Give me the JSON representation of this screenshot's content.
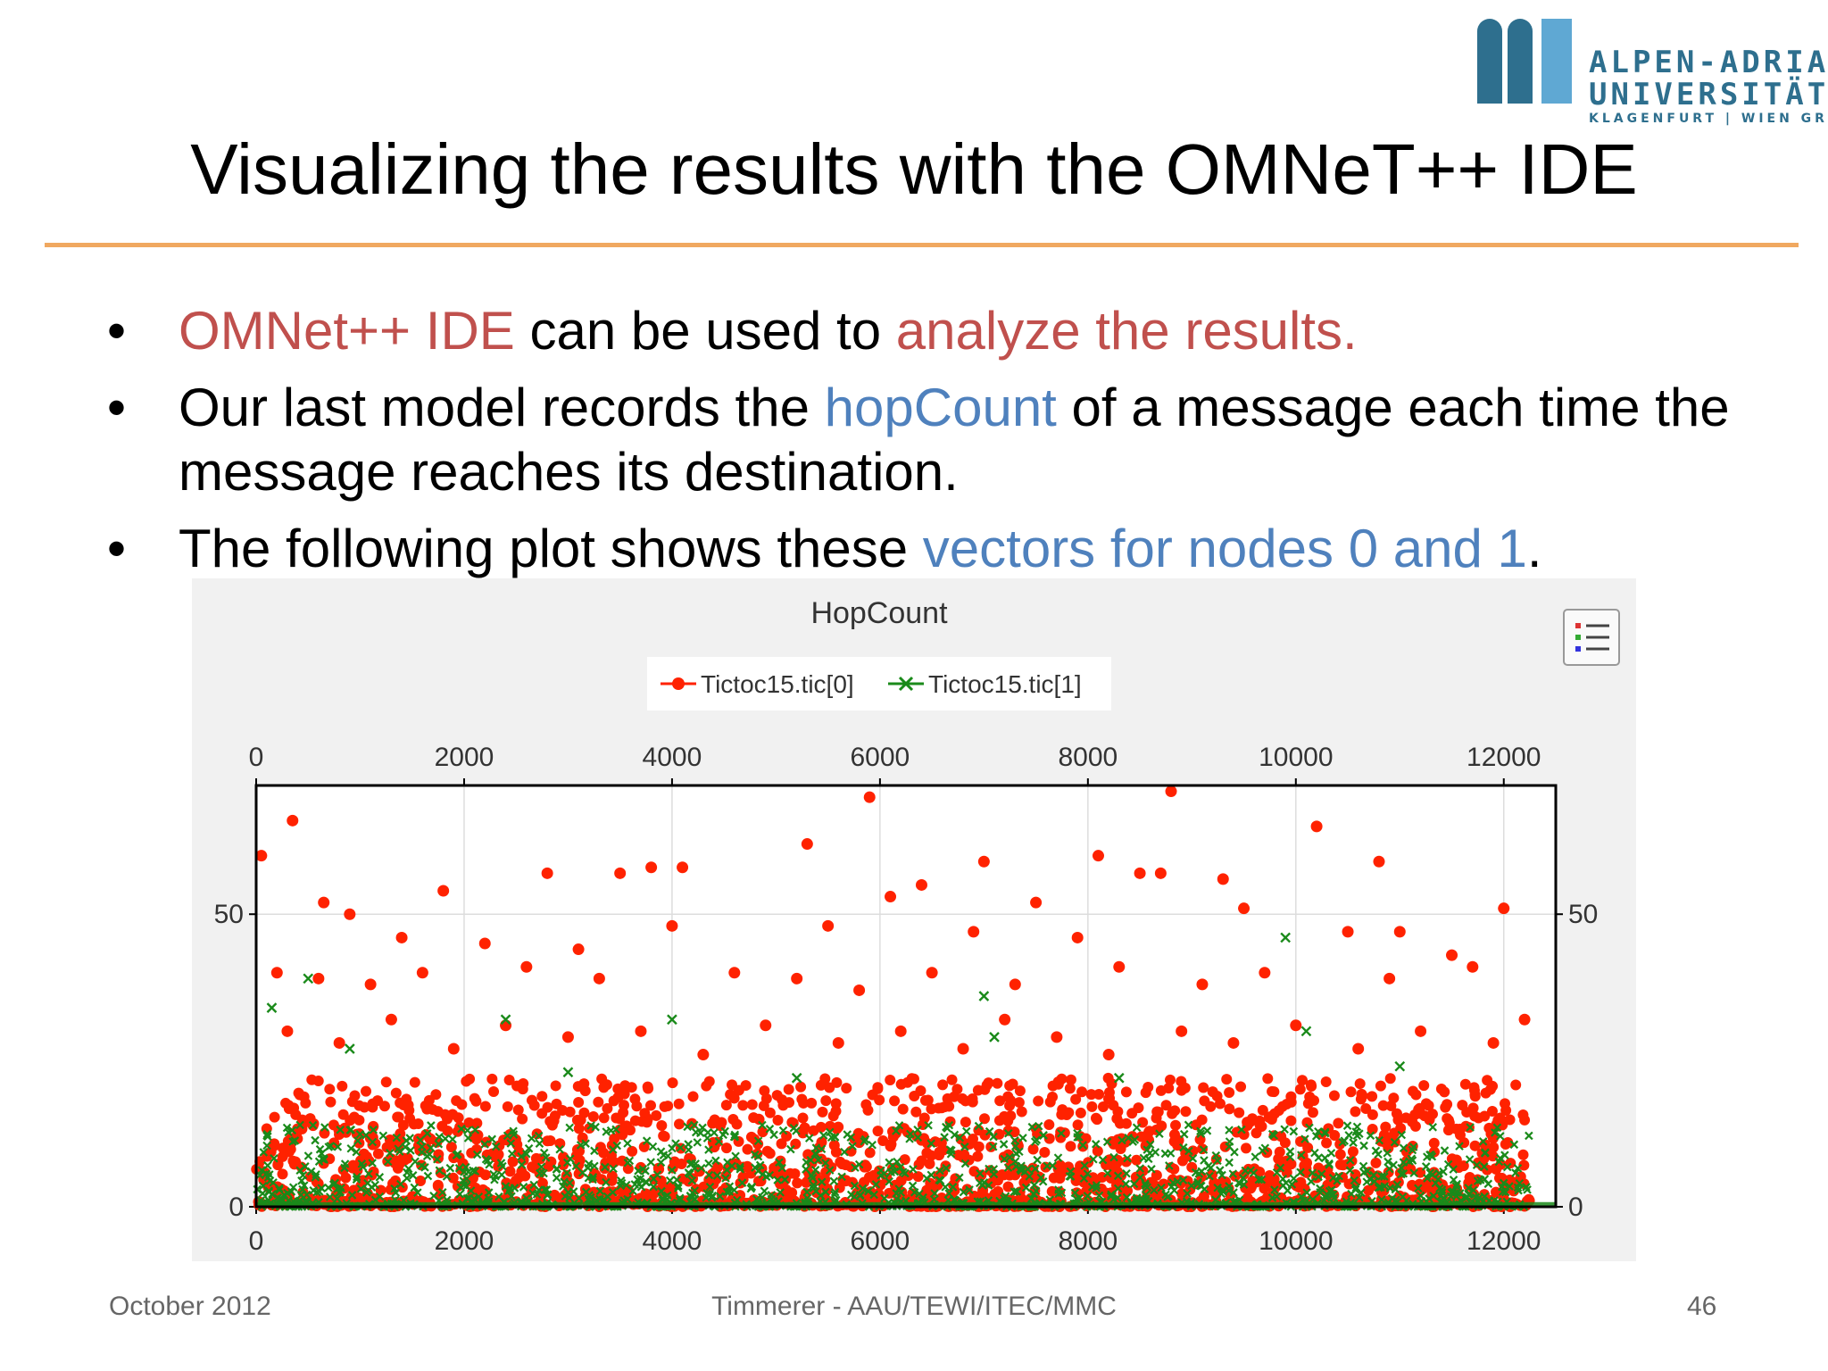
{
  "logo": {
    "line1": "ALPEN-ADRIA",
    "line2": "UNIVERSITÄT",
    "line3": "KLAGENFURT | WIEN GRAZ"
  },
  "slide": {
    "title": "Visualizing the results with the OMNeT++ IDE"
  },
  "bullets": [
    {
      "a": "OMNet++ IDE",
      "b": " can be used to ",
      "c": "analyze the results.",
      "d": ""
    },
    {
      "a": "Our last model records the ",
      "b": "hopCount",
      "c": " of a message each time the message reaches its destination.",
      "d": ""
    },
    {
      "a": "The following plot shows these ",
      "b": "vectors for nodes 0 and 1",
      "c": ".",
      "d": ""
    }
  ],
  "colors": {
    "red_text": "#c0504d",
    "blue_text": "#4f81bd",
    "rule": "#f0a860",
    "series0": "#ff2200",
    "series1": "#1a8a1a"
  },
  "chart_data": {
    "type": "scatter",
    "title": "HopCount",
    "legend": [
      "Tictoc15.tic[0]",
      "Tictoc15.tic[1]"
    ],
    "legend_placement": "top-center",
    "xlim": [
      0,
      12500
    ],
    "ylim": [
      0,
      72
    ],
    "x_ticks": [
      "0",
      "2000",
      "4000",
      "6000",
      "8000",
      "10000",
      "12000"
    ],
    "y_ticks": [
      "0",
      "50"
    ],
    "grid": true,
    "series": [
      {
        "name": "Tictoc15.tic[0]",
        "marker": "dot",
        "color": "#ff2200",
        "points": [
          [
            50,
            60
          ],
          [
            350,
            66
          ],
          [
            650,
            52
          ],
          [
            1800,
            54
          ],
          [
            2800,
            57
          ],
          [
            3500,
            57
          ],
          [
            3800,
            58
          ],
          [
            4100,
            58
          ],
          [
            5300,
            62
          ],
          [
            5900,
            70
          ],
          [
            6100,
            53
          ],
          [
            6400,
            55
          ],
          [
            7000,
            59
          ],
          [
            7500,
            52
          ],
          [
            8100,
            60
          ],
          [
            8500,
            57
          ],
          [
            8700,
            57
          ],
          [
            8800,
            71
          ],
          [
            9300,
            56
          ],
          [
            10200,
            65
          ],
          [
            10800,
            59
          ],
          [
            11000,
            47
          ],
          [
            12000,
            51
          ],
          [
            4000,
            48
          ],
          [
            6900,
            47
          ],
          [
            10500,
            47
          ],
          [
            900,
            50
          ],
          [
            1400,
            46
          ],
          [
            2200,
            45
          ],
          [
            3100,
            44
          ],
          [
            5500,
            48
          ],
          [
            7900,
            46
          ],
          [
            9500,
            51
          ],
          [
            11500,
            43
          ],
          [
            200,
            40
          ],
          [
            600,
            39
          ],
          [
            1100,
            38
          ],
          [
            1600,
            40
          ],
          [
            2600,
            41
          ],
          [
            3300,
            39
          ],
          [
            4600,
            40
          ],
          [
            5200,
            39
          ],
          [
            5800,
            37
          ],
          [
            6500,
            40
          ],
          [
            7300,
            38
          ],
          [
            8300,
            41
          ],
          [
            9100,
            38
          ],
          [
            9700,
            40
          ],
          [
            10900,
            39
          ],
          [
            11700,
            41
          ],
          [
            300,
            30
          ],
          [
            800,
            28
          ],
          [
            1300,
            32
          ],
          [
            1900,
            27
          ],
          [
            2400,
            31
          ],
          [
            3000,
            29
          ],
          [
            3700,
            30
          ],
          [
            4300,
            26
          ],
          [
            4900,
            31
          ],
          [
            5600,
            28
          ],
          [
            6200,
            30
          ],
          [
            6800,
            27
          ],
          [
            7200,
            32
          ],
          [
            7700,
            29
          ],
          [
            8200,
            26
          ],
          [
            8900,
            30
          ],
          [
            9400,
            28
          ],
          [
            10000,
            31
          ],
          [
            10600,
            27
          ],
          [
            11200,
            30
          ],
          [
            11900,
            28
          ],
          [
            12200,
            32
          ]
        ]
      },
      {
        "name": "Tictoc15.tic[1]",
        "marker": "x",
        "color": "#1a8a1a",
        "points": [
          [
            150,
            34
          ],
          [
            500,
            39
          ],
          [
            900,
            27
          ],
          [
            2400,
            32
          ],
          [
            4000,
            32
          ],
          [
            7000,
            36
          ],
          [
            7100,
            29
          ],
          [
            9900,
            46
          ],
          [
            10100,
            30
          ],
          [
            3000,
            23
          ],
          [
            5200,
            22
          ],
          [
            8300,
            22
          ],
          [
            11000,
            24
          ]
        ]
      }
    ],
    "density": {
      "series0_band": [
        0,
        22
      ],
      "series1_band": [
        0,
        14
      ],
      "x_range": [
        0,
        12250
      ]
    }
  },
  "footer": {
    "date": "October 2012",
    "author": "Timmerer - AAU/TEWI/ITEC/MMC",
    "page": "46"
  }
}
